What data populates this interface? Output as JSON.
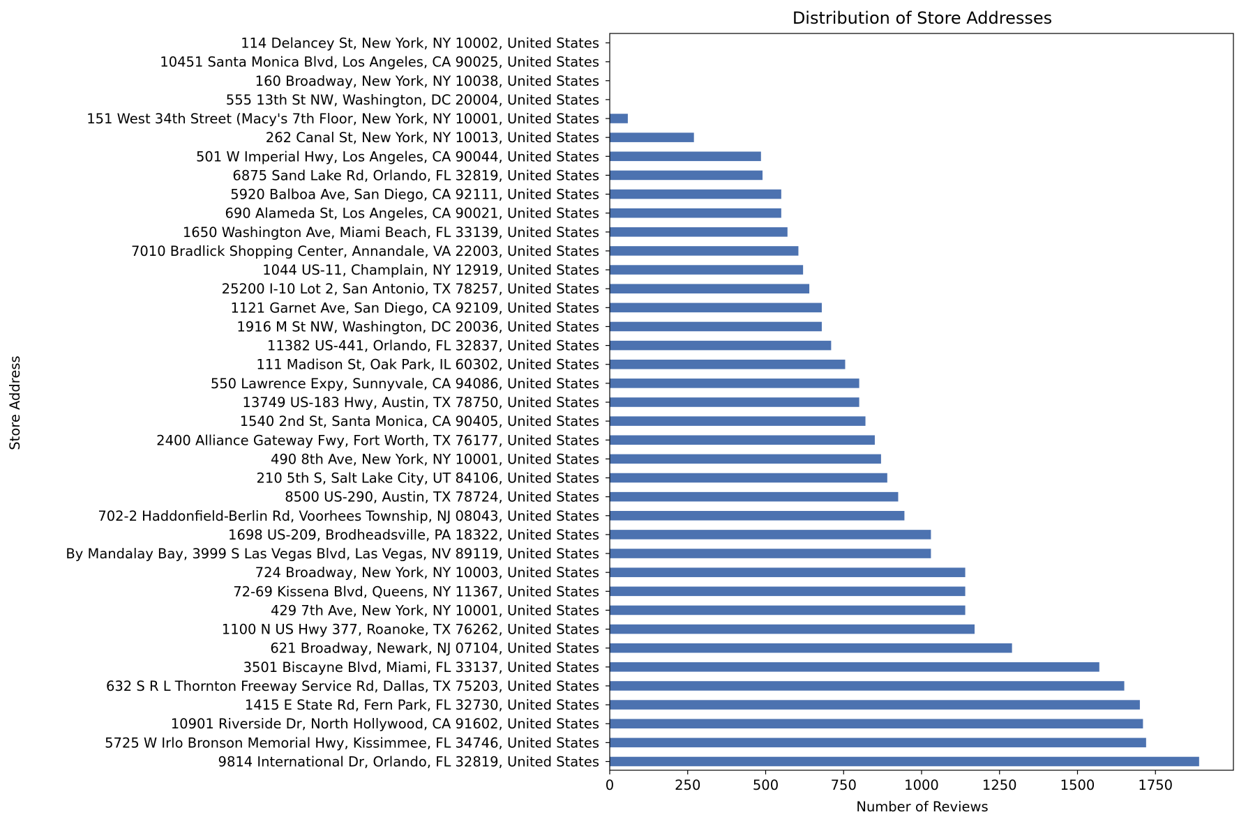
{
  "chart_data": {
    "type": "bar",
    "orientation": "horizontal",
    "title": "Distribution of Store Addresses",
    "xlabel": "Number of Reviews",
    "ylabel": "Store Address",
    "xlim": [
      0,
      2000
    ],
    "xticks": [
      0,
      250,
      500,
      750,
      1000,
      1250,
      1500,
      1750
    ],
    "grid": false,
    "bar_color": "#4c72b0",
    "categories": [
      "114 Delancey St, New York, NY 10002, United States",
      "10451 Santa Monica Blvd, Los Angeles, CA 90025, United States",
      "160 Broadway, New York, NY 10038, United States",
      "555 13th St NW, Washington, DC 20004, United States",
      "151 West 34th Street (Macy's 7th Floor, New York, NY 10001, United States",
      "262 Canal St, New York, NY 10013, United States",
      "501 W Imperial Hwy, Los Angeles, CA 90044, United States",
      "6875 Sand Lake Rd, Orlando, FL 32819, United States",
      "5920 Balboa Ave, San Diego, CA 92111, United States",
      "690 Alameda St, Los Angeles, CA 90021, United States",
      "1650 Washington Ave, Miami Beach, FL 33139, United States",
      "7010 Bradlick Shopping Center, Annandale, VA 22003, United States",
      "1044 US-11, Champlain, NY 12919, United States",
      "25200 I-10 Lot 2, San Antonio, TX 78257, United States",
      "1121 Garnet Ave, San Diego, CA 92109, United States",
      "1916 M St NW, Washington, DC 20036, United States",
      "11382 US-441, Orlando, FL 32837, United States",
      "111 Madison St, Oak Park, IL 60302, United States",
      "550 Lawrence Expy, Sunnyvale, CA 94086, United States",
      "13749 US-183 Hwy, Austin, TX 78750, United States",
      "1540 2nd St, Santa Monica, CA 90405, United States",
      "2400 Alliance Gateway Fwy, Fort Worth, TX 76177, United States",
      "490 8th Ave, New York, NY 10001, United States",
      "210 5th S, Salt Lake City, UT 84106, United States",
      "8500 US-290, Austin, TX 78724, United States",
      "702-2 Haddonfield-Berlin Rd, Voorhees Township, NJ 08043, United States",
      "1698 US-209, Brodheadsville, PA 18322, United States",
      "By Mandalay Bay, 3999 S Las Vegas Blvd, Las Vegas, NV 89119, United States",
      "724 Broadway, New York, NY 10003, United States",
      "72-69 Kissena Blvd, Queens, NY 11367, United States",
      "429 7th Ave, New York, NY 10001, United States",
      "1100 N US Hwy 377, Roanoke, TX 76262, United States",
      "621 Broadway, Newark, NJ 07104, United States",
      "3501 Biscayne Blvd, Miami, FL 33137, United States",
      "632 S R L Thornton Freeway Service Rd, Dallas, TX 75203, United States",
      "1415 E State Rd, Fern Park, FL 32730, United States",
      "10901 Riverside Dr, North Hollywood, CA 91602, United States",
      "5725 W Irlo Bronson Memorial Hwy, Kissimmee, FL 34746, United States",
      "9814 International Dr, Orlando, FL 32819, United States"
    ],
    "values": [
      0,
      0,
      0,
      0,
      58,
      270,
      485,
      490,
      550,
      550,
      570,
      605,
      620,
      640,
      680,
      680,
      710,
      755,
      800,
      800,
      820,
      850,
      870,
      890,
      925,
      945,
      1030,
      1030,
      1140,
      1140,
      1140,
      1170,
      1290,
      1570,
      1650,
      1700,
      1710,
      1720,
      1890
    ]
  }
}
